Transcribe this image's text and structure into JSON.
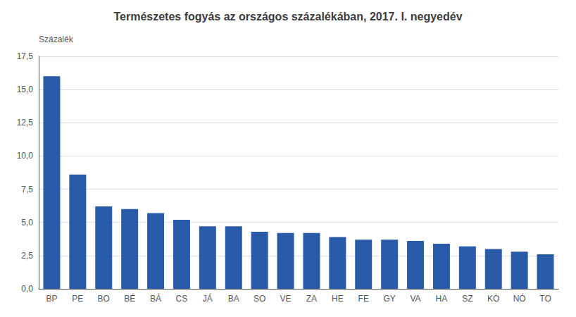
{
  "chart_data": {
    "type": "bar",
    "title": "Természetes fogyás az országos százalékában, 2017. I. negyedév",
    "ylabel": "Százalék",
    "categories": [
      "BP",
      "PE",
      "BO",
      "BÉ",
      "BÁ",
      "CS",
      "JÁ",
      "BA",
      "SO",
      "VE",
      "ZA",
      "HE",
      "FE",
      "GY",
      "VA",
      "HA",
      "SZ",
      "KO",
      "NÓ",
      "TO"
    ],
    "values": [
      16.0,
      8.6,
      6.2,
      6.0,
      5.7,
      5.2,
      4.7,
      4.7,
      4.3,
      4.2,
      4.2,
      3.9,
      3.7,
      3.7,
      3.6,
      3.4,
      3.2,
      3.0,
      2.8,
      2.6
    ],
    "color": "#2A5BA8",
    "ylim": [
      0,
      17.5
    ],
    "yticks": [
      {
        "value": 0.0,
        "label": "0,0"
      },
      {
        "value": 2.5,
        "label": "2,5"
      },
      {
        "value": 5.0,
        "label": "5,0"
      },
      {
        "value": 7.5,
        "label": "7,5"
      },
      {
        "value": 10.0,
        "label": "10,0"
      },
      {
        "value": 12.5,
        "label": "12,5"
      },
      {
        "value": 15.0,
        "label": "15,0"
      },
      {
        "value": 17.5,
        "label": "17,5"
      }
    ],
    "grid": true
  }
}
